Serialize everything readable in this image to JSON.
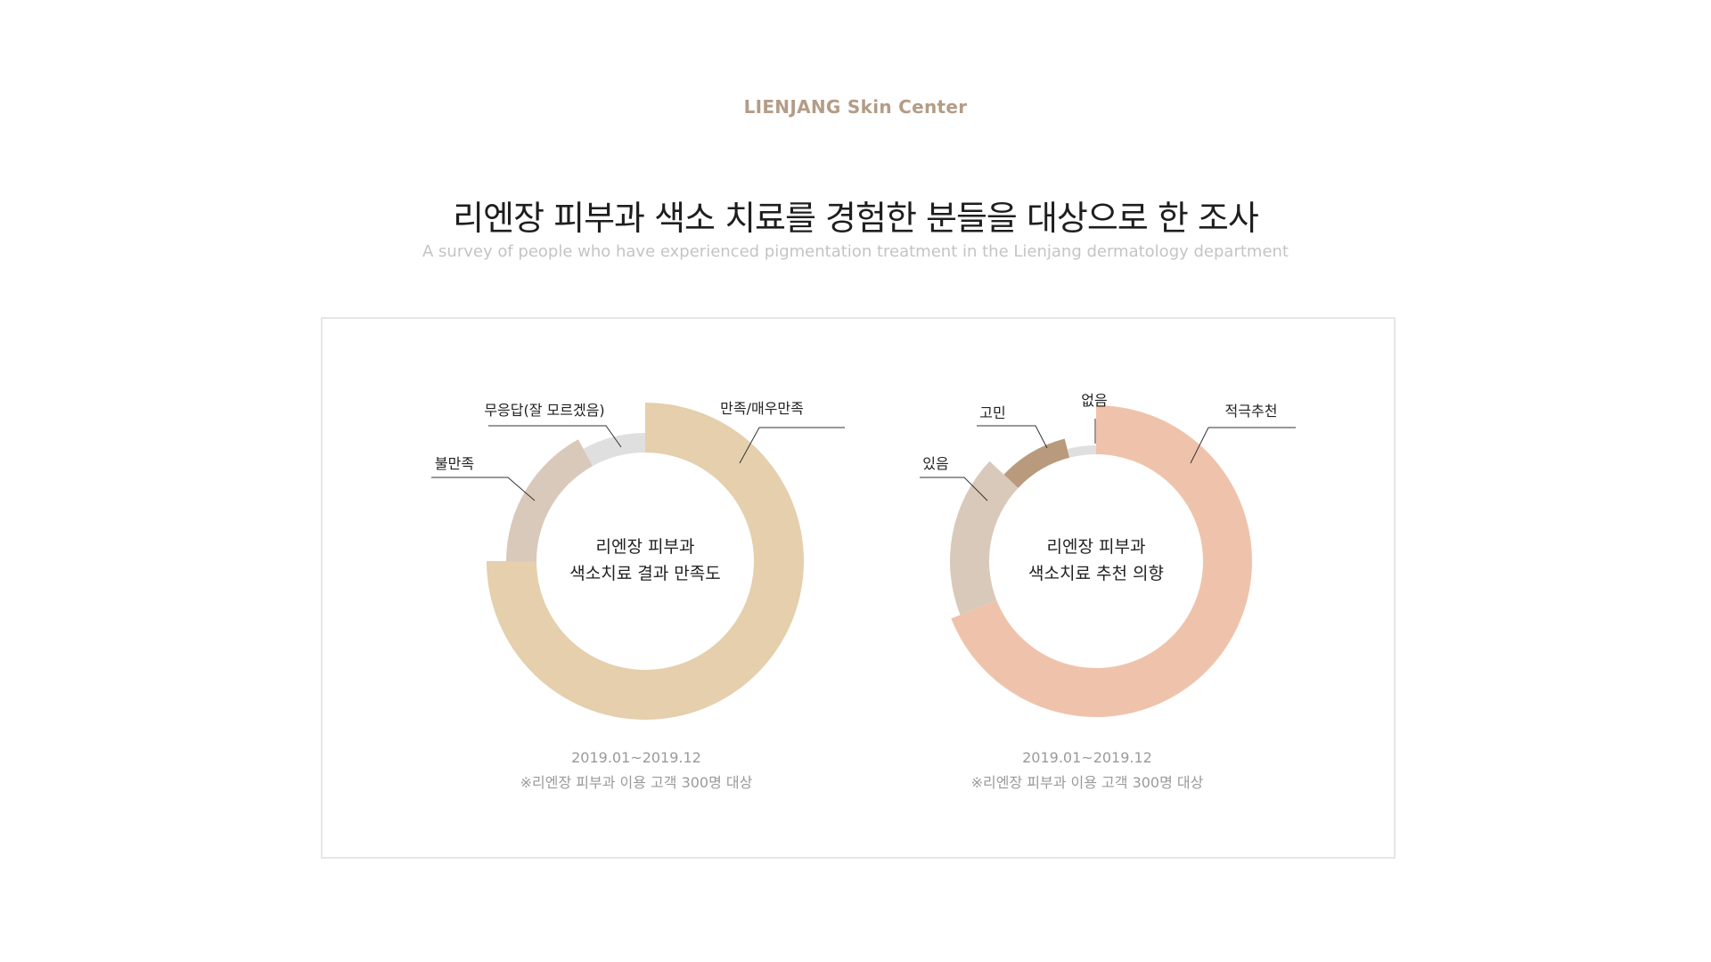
{
  "header": {
    "brand": "LIENJANG Skin Center",
    "title": "리엔장 피부과 색소 치료를 경험한 분들을 대상으로 한 조사",
    "subtitle": "A survey of people who have experienced pigmentation treatment in the Lienjang dermatology department"
  },
  "chart_data": [
    {
      "type": "pie",
      "donut": true,
      "center_label": [
        "리엔장 피부과",
        "색소치료 결과 만족도"
      ],
      "categories": [
        "만족/매우만족",
        "불만족",
        "무응답(잘 모르겠음)"
      ],
      "values": [
        75,
        17,
        8
      ],
      "colors": [
        "#e5cfac",
        "#d9c9bb",
        "#e0dfdf"
      ],
      "date_range": "2019.01~2019.12",
      "note": "※리엔장 피부과 이용 고객 300명 대상"
    },
    {
      "type": "pie",
      "donut": true,
      "center_label": [
        "리엔장 피부과",
        "색소치료 추천 의향"
      ],
      "categories": [
        "적극추천",
        "있음",
        "고민",
        "없음"
      ],
      "values": [
        69,
        18,
        9,
        4
      ],
      "colors": [
        "#efc3ab",
        "#d9c9bb",
        "#b99a7d",
        "#e0dfdf"
      ],
      "date_range": "2019.01~2019.12",
      "note": "※리엔장 피부과 이용 고객 300명 대상"
    }
  ]
}
